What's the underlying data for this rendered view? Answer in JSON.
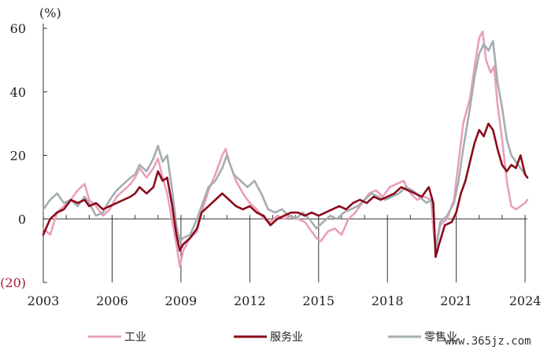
{
  "chart_data": {
    "type": "line",
    "unit_label": "(%)",
    "ylim": [
      -20,
      60
    ],
    "yticks": [
      {
        "value": 60,
        "label": "60",
        "color": "#222222"
      },
      {
        "value": 40,
        "label": "40",
        "color": "#222222"
      },
      {
        "value": 20,
        "label": "20",
        "color": "#222222"
      },
      {
        "value": 0,
        "label": "0",
        "color": "#222222"
      },
      {
        "value": -20,
        "label": "(20)",
        "color": "#a11c2e"
      }
    ],
    "xlim": [
      2003,
      2024.1
    ],
    "xticks": [
      "2003",
      "2006",
      "2009",
      "2012",
      "2015",
      "2018",
      "2021",
      "2024"
    ],
    "grid": false,
    "legend_placement": "bottom",
    "series": [
      {
        "name": "工业",
        "color": "#e8a0bc",
        "points": [
          [
            2003.0,
            -3
          ],
          [
            2003.3,
            -5
          ],
          [
            2003.6,
            2
          ],
          [
            2003.9,
            4
          ],
          [
            2004.2,
            6
          ],
          [
            2004.5,
            9
          ],
          [
            2004.8,
            11
          ],
          [
            2005.0,
            6
          ],
          [
            2005.3,
            4
          ],
          [
            2005.6,
            1
          ],
          [
            2005.9,
            3
          ],
          [
            2006.2,
            7
          ],
          [
            2006.5,
            9
          ],
          [
            2006.8,
            11
          ],
          [
            2007.0,
            13
          ],
          [
            2007.2,
            16
          ],
          [
            2007.5,
            13
          ],
          [
            2007.8,
            16
          ],
          [
            2008.0,
            19
          ],
          [
            2008.2,
            13
          ],
          [
            2008.4,
            8
          ],
          [
            2008.6,
            0
          ],
          [
            2008.8,
            -8
          ],
          [
            2008.95,
            -15
          ],
          [
            2009.1,
            -10
          ],
          [
            2009.4,
            -6
          ],
          [
            2009.7,
            -4
          ],
          [
            2009.9,
            2
          ],
          [
            2010.2,
            9
          ],
          [
            2010.5,
            14
          ],
          [
            2010.8,
            20
          ],
          [
            2010.95,
            22
          ],
          [
            2011.1,
            18
          ],
          [
            2011.4,
            12
          ],
          [
            2011.7,
            8
          ],
          [
            2012.0,
            5
          ],
          [
            2012.3,
            3
          ],
          [
            2012.6,
            0
          ],
          [
            2012.9,
            -1
          ],
          [
            2013.2,
            1
          ],
          [
            2013.5,
            0
          ],
          [
            2013.8,
            1
          ],
          [
            2014.1,
            0
          ],
          [
            2014.4,
            -1
          ],
          [
            2014.7,
            -4
          ],
          [
            2014.9,
            -6
          ],
          [
            2015.1,
            -7
          ],
          [
            2015.4,
            -4
          ],
          [
            2015.7,
            -3
          ],
          [
            2016.0,
            -5
          ],
          [
            2016.3,
            0
          ],
          [
            2016.6,
            2
          ],
          [
            2016.9,
            5
          ],
          [
            2017.2,
            8
          ],
          [
            2017.5,
            9
          ],
          [
            2017.8,
            7
          ],
          [
            2018.1,
            10
          ],
          [
            2018.4,
            11
          ],
          [
            2018.7,
            12
          ],
          [
            2019.0,
            8
          ],
          [
            2019.3,
            6
          ],
          [
            2019.6,
            7
          ],
          [
            2019.9,
            6
          ],
          [
            2020.0,
            -3
          ],
          [
            2020.1,
            -10
          ],
          [
            2020.3,
            -2
          ],
          [
            2020.6,
            0
          ],
          [
            2020.9,
            6
          ],
          [
            2021.1,
            18
          ],
          [
            2021.3,
            30
          ],
          [
            2021.6,
            38
          ],
          [
            2021.8,
            48
          ],
          [
            2022.0,
            57
          ],
          [
            2022.15,
            59
          ],
          [
            2022.3,
            50
          ],
          [
            2022.5,
            46
          ],
          [
            2022.65,
            48
          ],
          [
            2022.8,
            36
          ],
          [
            2023.0,
            25
          ],
          [
            2023.2,
            12
          ],
          [
            2023.4,
            4
          ],
          [
            2023.6,
            3
          ],
          [
            2023.8,
            4
          ],
          [
            2024.0,
            5
          ],
          [
            2024.1,
            6
          ]
        ]
      },
      {
        "name": "服务业",
        "color": "#8b0a1a",
        "points": [
          [
            2003.0,
            -5
          ],
          [
            2003.3,
            0
          ],
          [
            2003.6,
            2
          ],
          [
            2003.9,
            3
          ],
          [
            2004.2,
            6
          ],
          [
            2004.5,
            5
          ],
          [
            2004.8,
            6
          ],
          [
            2005.0,
            4
          ],
          [
            2005.3,
            5
          ],
          [
            2005.6,
            3
          ],
          [
            2005.9,
            4
          ],
          [
            2006.2,
            5
          ],
          [
            2006.5,
            6
          ],
          [
            2006.8,
            7
          ],
          [
            2007.0,
            8
          ],
          [
            2007.2,
            10
          ],
          [
            2007.5,
            8
          ],
          [
            2007.8,
            10
          ],
          [
            2008.0,
            15
          ],
          [
            2008.2,
            12
          ],
          [
            2008.4,
            13
          ],
          [
            2008.6,
            5
          ],
          [
            2008.8,
            -5
          ],
          [
            2008.95,
            -10
          ],
          [
            2009.1,
            -8
          ],
          [
            2009.4,
            -6
          ],
          [
            2009.7,
            -3
          ],
          [
            2009.9,
            2
          ],
          [
            2010.2,
            4
          ],
          [
            2010.5,
            6
          ],
          [
            2010.8,
            8
          ],
          [
            2011.1,
            6
          ],
          [
            2011.4,
            4
          ],
          [
            2011.7,
            3
          ],
          [
            2012.0,
            4
          ],
          [
            2012.3,
            2
          ],
          [
            2012.6,
            1
          ],
          [
            2012.9,
            -2
          ],
          [
            2013.2,
            0
          ],
          [
            2013.5,
            1
          ],
          [
            2013.8,
            2
          ],
          [
            2014.1,
            2
          ],
          [
            2014.4,
            1
          ],
          [
            2014.7,
            2
          ],
          [
            2015.0,
            1
          ],
          [
            2015.3,
            2
          ],
          [
            2015.6,
            3
          ],
          [
            2015.9,
            4
          ],
          [
            2016.2,
            3
          ],
          [
            2016.5,
            5
          ],
          [
            2016.8,
            6
          ],
          [
            2017.1,
            5
          ],
          [
            2017.4,
            7
          ],
          [
            2017.7,
            6
          ],
          [
            2018.0,
            7
          ],
          [
            2018.3,
            8
          ],
          [
            2018.6,
            10
          ],
          [
            2018.9,
            9
          ],
          [
            2019.2,
            8
          ],
          [
            2019.5,
            7
          ],
          [
            2019.8,
            10
          ],
          [
            2020.0,
            5
          ],
          [
            2020.1,
            -12
          ],
          [
            2020.25,
            -8
          ],
          [
            2020.5,
            -2
          ],
          [
            2020.8,
            -1
          ],
          [
            2021.0,
            2
          ],
          [
            2021.2,
            8
          ],
          [
            2021.4,
            12
          ],
          [
            2021.6,
            18
          ],
          [
            2021.8,
            24
          ],
          [
            2022.0,
            28
          ],
          [
            2022.2,
            26
          ],
          [
            2022.4,
            30
          ],
          [
            2022.6,
            28
          ],
          [
            2022.8,
            22
          ],
          [
            2023.0,
            17
          ],
          [
            2023.2,
            15
          ],
          [
            2023.4,
            17
          ],
          [
            2023.6,
            16
          ],
          [
            2023.8,
            20
          ],
          [
            2024.0,
            14
          ],
          [
            2024.1,
            13
          ]
        ]
      },
      {
        "name": "零售业",
        "color": "#a4adb2",
        "points": [
          [
            2003.0,
            3
          ],
          [
            2003.3,
            6
          ],
          [
            2003.6,
            8
          ],
          [
            2003.9,
            5
          ],
          [
            2004.2,
            6
          ],
          [
            2004.5,
            4
          ],
          [
            2004.8,
            7
          ],
          [
            2005.0,
            5
          ],
          [
            2005.3,
            1
          ],
          [
            2005.6,
            2
          ],
          [
            2005.9,
            6
          ],
          [
            2006.2,
            9
          ],
          [
            2006.5,
            11
          ],
          [
            2006.8,
            13
          ],
          [
            2007.0,
            14
          ],
          [
            2007.2,
            17
          ],
          [
            2007.5,
            15
          ],
          [
            2007.8,
            19
          ],
          [
            2008.0,
            23
          ],
          [
            2008.2,
            18
          ],
          [
            2008.4,
            20
          ],
          [
            2008.6,
            10
          ],
          [
            2008.8,
            -2
          ],
          [
            2008.95,
            -7
          ],
          [
            2009.1,
            -6
          ],
          [
            2009.4,
            -5
          ],
          [
            2009.7,
            0
          ],
          [
            2009.9,
            4
          ],
          [
            2010.2,
            10
          ],
          [
            2010.5,
            12
          ],
          [
            2010.8,
            16
          ],
          [
            2011.0,
            20
          ],
          [
            2011.3,
            14
          ],
          [
            2011.6,
            12
          ],
          [
            2011.9,
            10
          ],
          [
            2012.2,
            12
          ],
          [
            2012.5,
            8
          ],
          [
            2012.8,
            3
          ],
          [
            2013.1,
            2
          ],
          [
            2013.4,
            3
          ],
          [
            2013.7,
            1
          ],
          [
            2014.0,
            0
          ],
          [
            2014.3,
            2
          ],
          [
            2014.6,
            0
          ],
          [
            2014.9,
            -3
          ],
          [
            2015.2,
            -1
          ],
          [
            2015.5,
            1
          ],
          [
            2015.8,
            0
          ],
          [
            2016.1,
            2
          ],
          [
            2016.4,
            3
          ],
          [
            2016.7,
            4
          ],
          [
            2017.0,
            6
          ],
          [
            2017.3,
            8
          ],
          [
            2017.6,
            7
          ],
          [
            2017.9,
            6
          ],
          [
            2018.2,
            7
          ],
          [
            2018.5,
            8
          ],
          [
            2018.8,
            10
          ],
          [
            2019.1,
            9
          ],
          [
            2019.4,
            7
          ],
          [
            2019.7,
            5
          ],
          [
            2019.9,
            6
          ],
          [
            2020.0,
            3
          ],
          [
            2020.1,
            -10
          ],
          [
            2020.3,
            -1
          ],
          [
            2020.6,
            1
          ],
          [
            2020.9,
            5
          ],
          [
            2021.1,
            12
          ],
          [
            2021.3,
            22
          ],
          [
            2021.6,
            35
          ],
          [
            2021.8,
            45
          ],
          [
            2022.0,
            52
          ],
          [
            2022.2,
            55
          ],
          [
            2022.4,
            53
          ],
          [
            2022.6,
            56
          ],
          [
            2022.8,
            43
          ],
          [
            2023.0,
            35
          ],
          [
            2023.2,
            25
          ],
          [
            2023.4,
            20
          ],
          [
            2023.6,
            18
          ],
          [
            2023.8,
            16
          ],
          [
            2024.0,
            14
          ],
          [
            2024.1,
            13
          ]
        ]
      }
    ]
  },
  "watermark": "www.365jz.com"
}
